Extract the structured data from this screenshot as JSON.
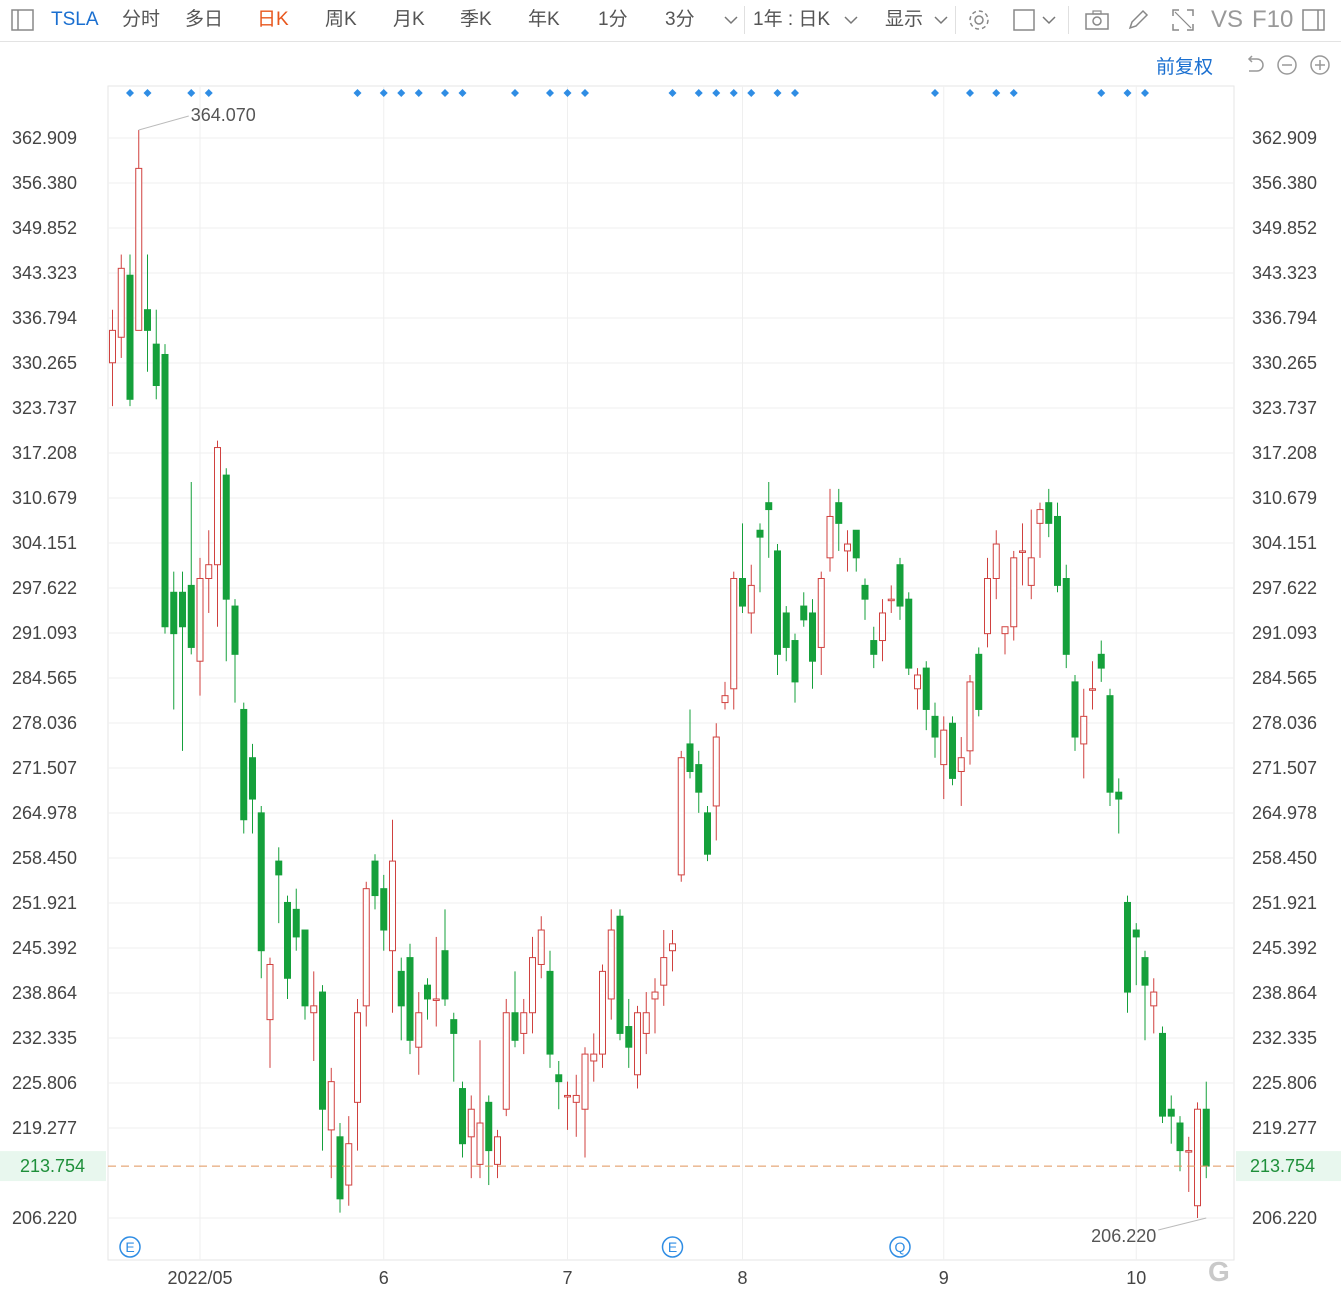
{
  "toolbar": {
    "symbol": "TSLA",
    "periods": [
      "分时",
      "多日",
      "日K",
      "周K",
      "月K",
      "季K",
      "年K",
      "1分",
      "3分"
    ],
    "active_period": "日K",
    "range_label": "1年 : 日K",
    "display_label": "显示",
    "vs_label": "VS",
    "f10_label": "F10"
  },
  "chart_controls": {
    "adjust_label": "前复权"
  },
  "chart_data": {
    "type": "candlestick",
    "title": "",
    "xlabel": "",
    "ylabel": "",
    "ylim": [
      202.0,
      369.0
    ],
    "y_ticks": [
      "362.909",
      "356.380",
      "349.852",
      "343.323",
      "336.794",
      "330.265",
      "323.737",
      "317.208",
      "310.679",
      "304.151",
      "297.622",
      "291.093",
      "284.565",
      "278.036",
      "271.507",
      "264.978",
      "258.450",
      "251.921",
      "245.392",
      "238.864",
      "232.335",
      "225.806",
      "219.277",
      "206.220"
    ],
    "x_labels": [
      {
        "label": "2022/05",
        "index": 10
      },
      {
        "label": "6",
        "index": 31
      },
      {
        "label": "7",
        "index": 52
      },
      {
        "label": "8",
        "index": 72
      },
      {
        "label": "9",
        "index": 95
      },
      {
        "label": "10",
        "index": 117
      }
    ],
    "current_price": "213.754",
    "max_label": "364.070",
    "max_index": 3,
    "min_label": "206.220",
    "min_index": 125,
    "colors": {
      "up": "#d0413f",
      "down": "#15a03b",
      "current_line": "#e0945a",
      "marker": "#2f8de4",
      "event": "#2f8de4"
    },
    "event_markers": [
      {
        "label": "E",
        "index": 2
      },
      {
        "label": "E",
        "index": 64
      },
      {
        "label": "Q",
        "index": 90
      }
    ],
    "dot_marker_indices": [
      2,
      4,
      9,
      11,
      28,
      31,
      33,
      35,
      38,
      40,
      46,
      50,
      52,
      54,
      64,
      67,
      69,
      71,
      73,
      76,
      78,
      94,
      98,
      101,
      103,
      113,
      116,
      118
    ],
    "candles": [
      [
        330.3,
        335.0,
        325.0,
        338.0,
        324.0
      ],
      [
        334.0,
        344.0,
        333.0,
        346.0,
        331.0
      ],
      [
        343.0,
        325.0,
        325.0,
        346.0,
        324.0
      ],
      [
        335.0,
        358.5,
        336.0,
        364.07,
        335.0
      ],
      [
        338.0,
        335.0,
        333.0,
        346.0,
        329.0
      ],
      [
        333.0,
        327.0,
        325.0,
        338.0,
        325.0
      ],
      [
        331.5,
        292.0,
        292.0,
        333.0,
        291.0
      ],
      [
        297.0,
        291.0,
        291.0,
        300.0,
        280.0
      ],
      [
        297.0,
        292.0,
        292.0,
        300.0,
        274.0
      ],
      [
        298.0,
        289.0,
        288.0,
        313.0,
        289.0
      ],
      [
        287.0,
        299.0,
        287.0,
        302.0,
        282.0
      ],
      [
        299.0,
        301.0,
        298.0,
        306.0,
        294.0
      ],
      [
        301.0,
        318.0,
        300.0,
        319.0,
        292.0
      ],
      [
        314.0,
        296.0,
        296.0,
        315.0,
        287.0
      ],
      [
        295.0,
        288.0,
        288.0,
        296.0,
        281.0
      ],
      [
        280.0,
        264.0,
        264.0,
        281.0,
        262.0
      ],
      [
        273.0,
        267.0,
        265.0,
        275.0,
        262.0
      ],
      [
        265.0,
        245.0,
        245.0,
        266.0,
        241.0
      ],
      [
        235.0,
        243.0,
        234.0,
        244.0,
        228.0
      ],
      [
        258.0,
        256.0,
        254.0,
        260.0,
        249.0
      ],
      [
        252.0,
        241.0,
        241.0,
        253.0,
        238.0
      ],
      [
        251.0,
        247.0,
        247.0,
        254.0,
        245.0
      ],
      [
        248.0,
        237.0,
        237.0,
        248.0,
        235.0
      ],
      [
        236.0,
        237.0,
        235.0,
        242.0,
        229.0
      ],
      [
        239.0,
        222.0,
        222.0,
        240.0,
        216.0
      ],
      [
        219.0,
        226.0,
        215.0,
        228.0,
        212.0
      ],
      [
        218.0,
        209.0,
        209.0,
        220.0,
        207.0
      ],
      [
        211.0,
        217.0,
        209.0,
        221.0,
        208.0
      ],
      [
        223.0,
        236.0,
        222.0,
        238.0,
        216.0
      ],
      [
        237.0,
        254.0,
        236.0,
        255.0,
        234.0
      ],
      [
        258.0,
        253.0,
        252.0,
        259.0,
        251.0
      ],
      [
        254.0,
        248.0,
        247.0,
        256.0,
        245.0
      ],
      [
        245.0,
        258.0,
        243.0,
        264.0,
        236.0
      ],
      [
        242.0,
        237.0,
        237.0,
        244.0,
        232.0
      ],
      [
        244.0,
        232.0,
        232.0,
        246.0,
        230.0
      ],
      [
        231.0,
        236.0,
        229.0,
        239.0,
        227.0
      ],
      [
        240.0,
        238.0,
        237.0,
        241.0,
        235.0
      ],
      [
        238.0,
        238.0,
        237.0,
        247.0,
        234.0
      ],
      [
        245.0,
        238.0,
        238.0,
        251.0,
        237.0
      ],
      [
        235.0,
        233.0,
        230.0,
        236.0,
        226.0
      ],
      [
        225.0,
        217.0,
        217.0,
        226.0,
        215.0
      ],
      [
        218.0,
        222.0,
        216.0,
        224.0,
        212.0
      ],
      [
        214.0,
        220.0,
        212.0,
        232.0,
        212.0
      ],
      [
        223.0,
        216.0,
        216.0,
        224.0,
        211.0
      ],
      [
        214.0,
        218.0,
        213.0,
        219.0,
        212.0
      ],
      [
        222.0,
        236.0,
        221.0,
        238.0,
        221.0
      ],
      [
        236.0,
        232.0,
        232.0,
        242.0,
        231.0
      ],
      [
        233.0,
        236.0,
        231.0,
        238.0,
        230.0
      ],
      [
        236.0,
        244.0,
        234.0,
        247.0,
        233.0
      ],
      [
        243.0,
        248.0,
        242.0,
        250.0,
        241.0
      ],
      [
        242.0,
        230.0,
        230.0,
        245.0,
        228.0
      ],
      [
        227.0,
        226.0,
        225.0,
        229.0,
        222.0
      ],
      [
        224.0,
        224.0,
        224.0,
        226.0,
        219.0
      ],
      [
        223.0,
        224.0,
        221.0,
        227.0,
        218.0
      ],
      [
        222.0,
        230.0,
        220.0,
        231.0,
        215.0
      ],
      [
        229.0,
        230.0,
        228.0,
        233.0,
        226.0
      ],
      [
        230.0,
        242.0,
        229.0,
        243.0,
        228.0
      ],
      [
        238.0,
        248.0,
        237.0,
        251.0,
        235.0
      ],
      [
        250.0,
        233.0,
        233.0,
        251.0,
        232.0
      ],
      [
        234.0,
        231.0,
        231.0,
        238.0,
        228.0
      ],
      [
        227.0,
        236.0,
        226.0,
        237.0,
        225.0
      ],
      [
        233.0,
        236.0,
        232.0,
        239.0,
        230.0
      ],
      [
        238.0,
        239.0,
        237.0,
        241.0,
        233.0
      ],
      [
        240.0,
        244.0,
        239.0,
        248.0,
        237.0
      ],
      [
        245.0,
        246.0,
        244.0,
        248.0,
        242.0
      ],
      [
        256.0,
        273.0,
        255.0,
        274.0,
        255.0
      ],
      [
        275.0,
        271.0,
        271.0,
        280.0,
        270.0
      ],
      [
        272.0,
        268.0,
        268.0,
        274.0,
        265.0
      ],
      [
        265.0,
        259.0,
        259.0,
        266.0,
        258.0
      ],
      [
        266.0,
        276.0,
        265.0,
        278.0,
        261.0
      ],
      [
        281.0,
        282.0,
        280.0,
        284.0,
        280.0
      ],
      [
        283.0,
        299.0,
        282.0,
        300.0,
        280.0
      ],
      [
        299.0,
        295.0,
        295.0,
        307.0,
        294.0
      ],
      [
        294.0,
        298.0,
        292.0,
        301.0,
        291.0
      ],
      [
        306.0,
        305.0,
        303.0,
        307.0,
        297.0
      ],
      [
        310.0,
        309.0,
        307.0,
        313.0,
        302.0
      ],
      [
        303.0,
        288.0,
        288.0,
        304.0,
        285.0
      ],
      [
        294.0,
        289.0,
        289.0,
        295.0,
        287.0
      ],
      [
        290.0,
        284.0,
        284.0,
        291.0,
        281.0
      ],
      [
        295.0,
        293.0,
        293.0,
        297.0,
        292.0
      ],
      [
        294.0,
        287.0,
        287.0,
        296.0,
        283.0
      ],
      [
        289.0,
        299.0,
        287.0,
        300.0,
        285.0
      ],
      [
        302.0,
        308.0,
        301.0,
        312.0,
        300.0
      ],
      [
        310.0,
        307.0,
        305.0,
        312.0,
        303.0
      ],
      [
        303.0,
        304.0,
        303.0,
        306.0,
        300.0
      ],
      [
        306.0,
        302.0,
        302.0,
        306.0,
        300.0
      ],
      [
        298.0,
        296.0,
        296.0,
        299.0,
        293.0
      ],
      [
        290.0,
        288.0,
        288.0,
        292.0,
        286.0
      ],
      [
        290.0,
        294.0,
        288.0,
        296.0,
        287.0
      ],
      [
        296.0,
        296.0,
        295.0,
        298.0,
        294.0
      ],
      [
        301.0,
        295.0,
        295.0,
        302.0,
        293.0
      ],
      [
        296.0,
        286.0,
        286.0,
        297.0,
        285.0
      ],
      [
        283.0,
        285.0,
        282.0,
        286.0,
        280.0
      ],
      [
        286.0,
        280.0,
        280.0,
        287.0,
        277.0
      ],
      [
        279.0,
        276.0,
        275.0,
        281.0,
        273.0
      ],
      [
        272.0,
        277.0,
        271.0,
        279.0,
        267.0
      ],
      [
        278.0,
        270.0,
        270.0,
        279.0,
        269.0
      ],
      [
        271.0,
        273.0,
        270.0,
        276.0,
        266.0
      ],
      [
        274.0,
        284.0,
        273.0,
        285.0,
        272.0
      ],
      [
        288.0,
        280.0,
        280.0,
        289.0,
        279.0
      ],
      [
        291.0,
        299.0,
        290.0,
        302.0,
        289.0
      ],
      [
        299.0,
        304.0,
        298.0,
        306.0,
        296.0
      ],
      [
        291.0,
        292.0,
        289.0,
        292.0,
        288.0
      ],
      [
        292.0,
        302.0,
        291.0,
        303.0,
        290.0
      ],
      [
        303.0,
        303.0,
        300.0,
        307.0,
        298.0
      ],
      [
        298.0,
        302.0,
        297.0,
        309.0,
        296.0
      ],
      [
        307.0,
        309.0,
        306.0,
        310.0,
        302.0
      ],
      [
        310.0,
        307.0,
        307.0,
        312.0,
        305.0
      ],
      [
        308.0,
        298.0,
        298.0,
        310.0,
        297.0
      ],
      [
        299.0,
        288.0,
        288.0,
        301.0,
        286.0
      ],
      [
        284.0,
        276.0,
        276.0,
        285.0,
        274.0
      ],
      [
        275.0,
        279.0,
        274.0,
        283.0,
        270.0
      ],
      [
        283.0,
        283.0,
        282.0,
        287.0,
        280.0
      ],
      [
        288.0,
        286.0,
        285.0,
        290.0,
        284.0
      ],
      [
        282.0,
        268.0,
        268.0,
        283.0,
        266.0
      ],
      [
        268.0,
        267.0,
        266.0,
        270.0,
        262.0
      ],
      [
        252.0,
        239.0,
        239.0,
        253.0,
        236.0
      ],
      [
        248.0,
        247.0,
        245.0,
        249.0,
        240.0
      ],
      [
        244.0,
        240.0,
        240.0,
        245.0,
        232.0
      ],
      [
        237.0,
        239.0,
        236.0,
        241.0,
        233.0
      ],
      [
        233.0,
        221.0,
        221.0,
        234.0,
        220.0
      ],
      [
        222.0,
        221.0,
        219.0,
        224.0,
        217.0
      ],
      [
        220.0,
        216.0,
        216.0,
        221.0,
        213.0
      ],
      [
        216.0,
        216.0,
        212.0,
        218.0,
        210.0
      ],
      [
        208.0,
        222.0,
        206.22,
        223.0,
        206.22
      ],
      [
        222.0,
        213.754,
        213.754,
        226.0,
        212.0
      ]
    ]
  }
}
